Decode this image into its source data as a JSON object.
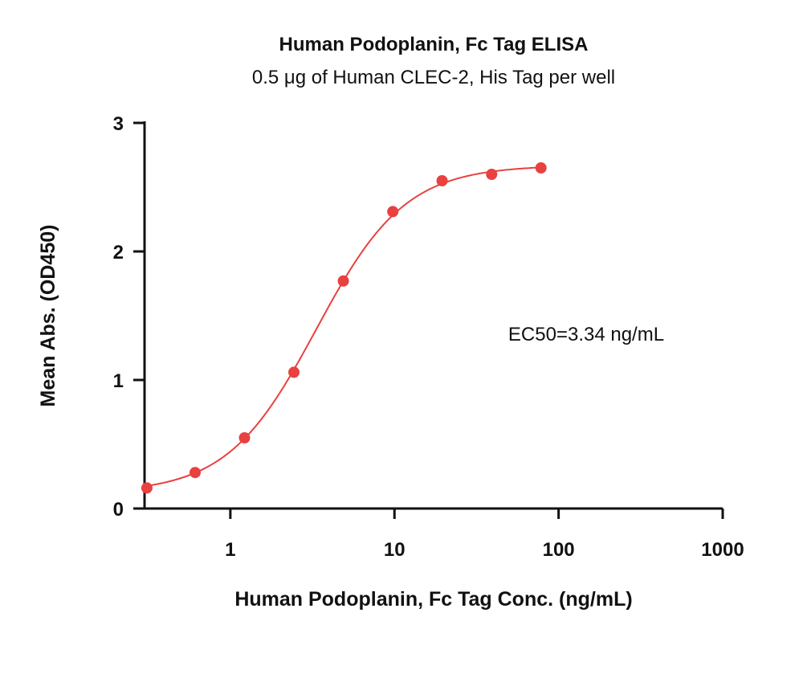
{
  "chart_data": {
    "type": "scatter",
    "title": "Human Podoplanin, Fc Tag ELISA",
    "subtitle": "0.5 μg of Human CLEC-2, His Tag per well",
    "xlabel": "Human Podoplanin, Fc Tag Conc. (ng/mL)",
    "ylabel": "Mean Abs. (OD450)",
    "x_scale": "log",
    "xlim": [
      0.3,
      1000
    ],
    "ylim": [
      0,
      3
    ],
    "x_ticks": [
      1,
      10,
      100,
      1000
    ],
    "x_tick_labels": [
      "1",
      "10",
      "100",
      "1000"
    ],
    "y_ticks": [
      0,
      1,
      2,
      3
    ],
    "y_tick_labels": [
      "0",
      "1",
      "2",
      "3"
    ],
    "grid": false,
    "series": [
      {
        "color": "#e8413f",
        "x": [
          0.31,
          0.61,
          1.22,
          2.44,
          4.88,
          9.77,
          19.5,
          39.1,
          78.1
        ],
        "y": [
          0.16,
          0.28,
          0.55,
          1.06,
          1.77,
          2.31,
          2.55,
          2.6,
          2.65
        ]
      }
    ],
    "fit_curve": {
      "model": "4PL",
      "bottom": 0.12,
      "top": 2.67,
      "ec50": 3.34,
      "hill": 1.6,
      "color": "#e8413f"
    },
    "annotations": [
      "EC50=3.34 ng/mL"
    ]
  }
}
